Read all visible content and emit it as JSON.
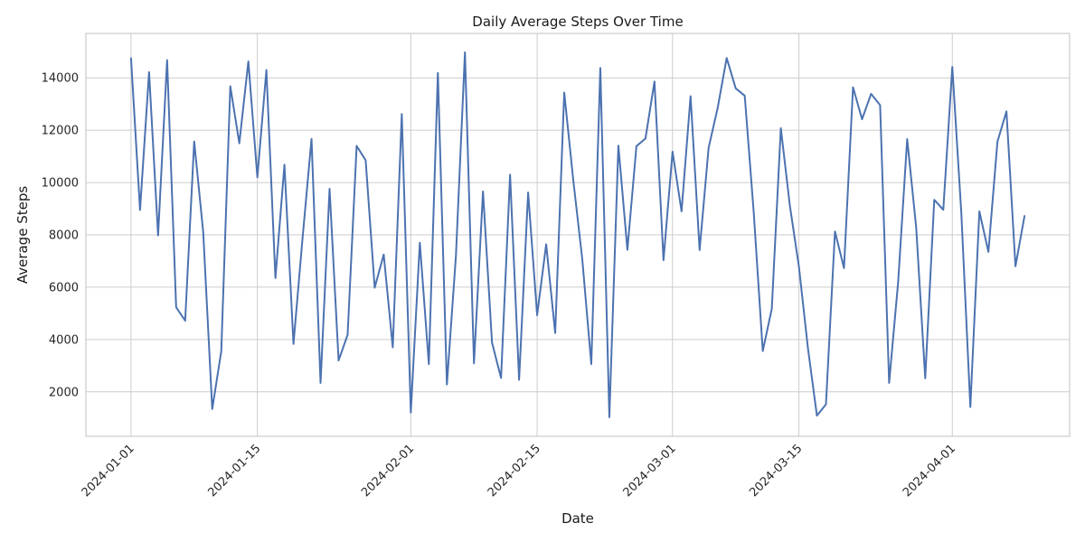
{
  "chart_data": {
    "type": "line",
    "title": "Daily Average Steps Over Time",
    "xlabel": "Date",
    "ylabel": "Average Steps",
    "x_start": "2024-01-01",
    "x_end": "2024-04-09",
    "xlim": [
      "2023-12-27",
      "2024-04-14"
    ],
    "ylim": [
      300,
      15700
    ],
    "x_ticks": [
      "2024-01-01",
      "2024-01-15",
      "2024-02-01",
      "2024-02-15",
      "2024-03-01",
      "2024-03-15",
      "2024-04-01"
    ],
    "y_ticks": [
      2000,
      4000,
      6000,
      8000,
      10000,
      12000,
      14000
    ],
    "grid": true,
    "series": [
      {
        "color": "#4c72b0",
        "values": [
          14750,
          8950,
          14220,
          7980,
          14680,
          5230,
          4720,
          11570,
          8100,
          1340,
          3550,
          13680,
          11500,
          14630,
          10200,
          14300,
          6350,
          10680,
          3830,
          7850,
          11670,
          2340,
          9760,
          3200,
          4180,
          11400,
          10850,
          5980,
          7250,
          3700,
          12620,
          1210,
          7700,
          3060,
          14190,
          2280,
          7200,
          14980,
          3090,
          9660,
          3880,
          2530,
          10300,
          2460,
          9620,
          4930,
          7640,
          4250,
          13440,
          10100,
          7070,
          3060,
          14380,
          1030,
          11410,
          7430,
          11390,
          11680,
          13860,
          7030,
          11180,
          8900,
          13300,
          7420,
          11330,
          12850,
          14760,
          13600,
          13320,
          8850,
          3560,
          5180,
          12080,
          9120,
          6800,
          3680,
          1090,
          1520,
          8130,
          6730,
          13640,
          12420,
          13390,
          12960,
          2340,
          6200,
          11660,
          8280,
          2520,
          9340,
          8960,
          14420,
          8830,
          1420,
          8900,
          7350,
          11560,
          12720,
          6800,
          8720
        ]
      }
    ]
  }
}
